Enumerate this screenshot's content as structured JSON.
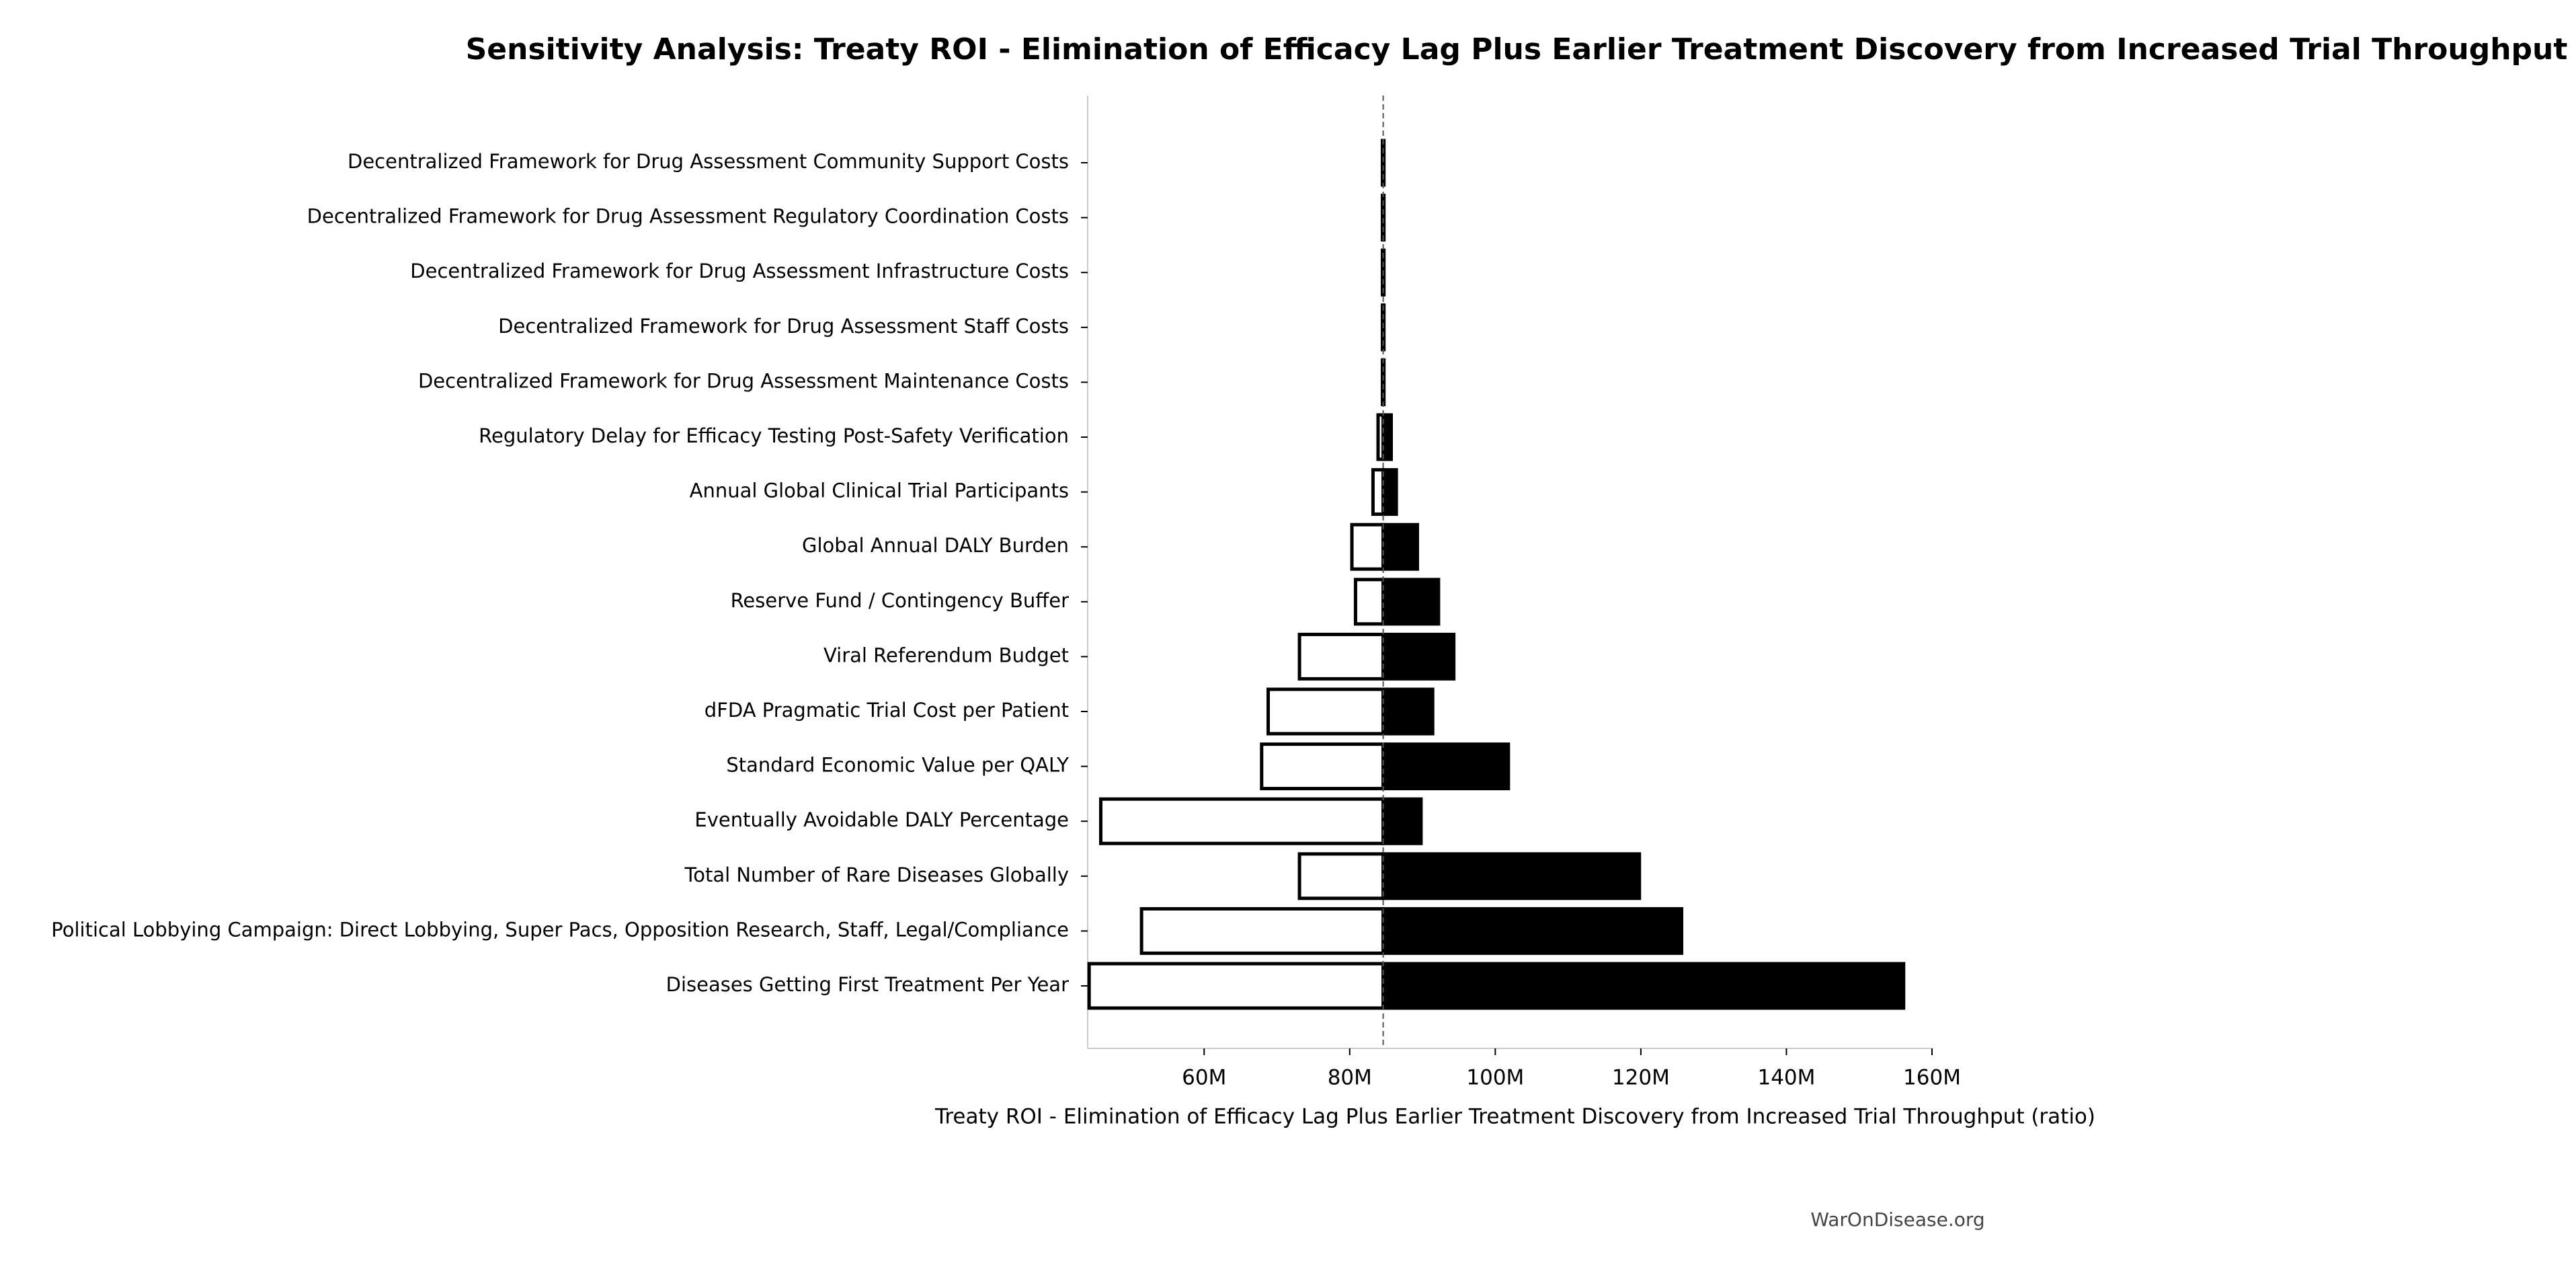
{
  "chart_data": {
    "type": "tornado",
    "title": "Sensitivity Analysis: Treaty ROI - Elimination of Efficacy Lag Plus Earlier Treatment Discovery from Increased Trial Throughput",
    "x_label": "Treaty ROI - Elimination of Efficacy Lag Plus Earlier Treatment Discovery from Increased Trial Throughput (ratio)",
    "watermark": "WarOnDisease.org",
    "categories": [
      "Decentralized Framework for Drug Assessment Community Support Costs",
      "Decentralized Framework for Drug Assessment Regulatory Coordination Costs",
      "Decentralized Framework for Drug Assessment Infrastructure Costs",
      "Decentralized Framework for Drug Assessment Staff Costs",
      "Decentralized Framework for Drug Assessment Maintenance Costs",
      "Regulatory Delay for Efficacy Testing Post-Safety Verification",
      "Annual Global Clinical Trial Participants",
      "Global Annual DALY Burden",
      "Reserve Fund / Contingency Buffer",
      "Viral Referendum Budget",
      "dFDA Pragmatic Trial Cost per Patient",
      "Standard Economic Value per QALY",
      "Eventually Avoidable DALY Percentage",
      "Total Number of Rare Diseases Globally",
      "Political Lobbying Campaign: Direct Lobbying, Super Pacs, Opposition Research, Staff, Legal/Compliance",
      "Diseases Getting First Treatment Per Year"
    ],
    "low": [
      84.5,
      84.5,
      84.5,
      84.5,
      84.5,
      83.9,
      83.2,
      80.3,
      80.8,
      73.1,
      68.8,
      67.9,
      45.8,
      73.1,
      51.4,
      44.2
    ],
    "high": [
      84.7,
      84.7,
      84.7,
      84.7,
      84.7,
      85.7,
      86.4,
      89.3,
      92.2,
      94.3,
      91.4,
      101.8,
      89.8,
      119.8,
      125.6,
      156.1
    ],
    "baseline": 84.6,
    "low_color": "#ffffff",
    "high_color": "#000000",
    "xlim": [
      44,
      160
    ],
    "xticks": [
      {
        "value": 60,
        "label": "60M"
      },
      {
        "value": 80,
        "label": "80M"
      },
      {
        "value": 100,
        "label": "100M"
      },
      {
        "value": 120,
        "label": "120M"
      },
      {
        "value": 140,
        "label": "140M"
      },
      {
        "value": 160,
        "label": "160M"
      }
    ]
  }
}
